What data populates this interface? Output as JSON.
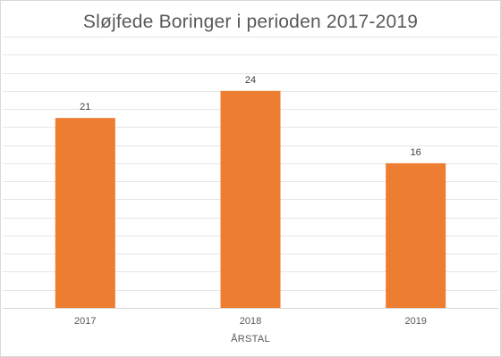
{
  "chart_data": {
    "type": "bar",
    "title": "Sløjfede Boringer i perioden 2017-2019",
    "xlabel": "ÅRSTAL",
    "ylabel": "",
    "categories": [
      "2017",
      "2018",
      "2019"
    ],
    "values": [
      21,
      24,
      16
    ],
    "data_labels": [
      "21",
      "24",
      "16"
    ],
    "ylim": [
      0,
      30
    ],
    "y_axis_labels_shown": false,
    "grid": true,
    "legend": "none",
    "bar_color": "#ED7D31",
    "grid_color": "#e6e6e6"
  }
}
